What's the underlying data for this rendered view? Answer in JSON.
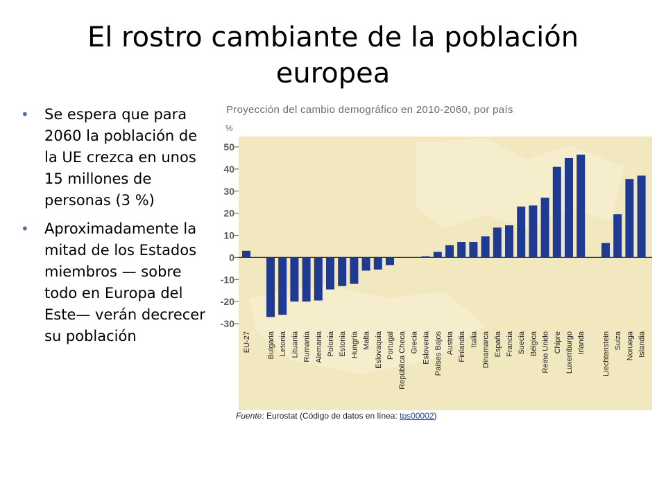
{
  "slide": {
    "title": "El rostro cambiante de la población europea",
    "bullets": [
      "Se espera que para 2060 la población de la UE crezca en unos 15 millones de personas (3 %)",
      "Aproximadamente la mitad de los Estados miembros — sobre todo en Europa del Este— verán decrecer su población"
    ]
  },
  "chart_data": {
    "type": "bar",
    "title": "Proyección del cambio demográfico en 2010-2060, por país",
    "ylabel": "%",
    "ylim": [
      -30,
      50
    ],
    "yticks": [
      50,
      40,
      30,
      20,
      10,
      0,
      -10,
      -20,
      -30
    ],
    "grid": false,
    "bar_color": "#1f3a93",
    "background_color": "#f2e8bf",
    "categories": [
      "EU-27",
      "Bulgaria",
      "Letonia",
      "Lituania",
      "Rumanía",
      "Alemania",
      "Polonia",
      "Estonia",
      "Hungría",
      "Malta",
      "Eslovaquia",
      "Portugal",
      "República Checa",
      "Grecia",
      "Eslovenia",
      "Países Bajos",
      "Austria",
      "Finlandia",
      "Italia",
      "Dinamarca",
      "España",
      "Francia",
      "Suecia",
      "Bélgica",
      "Reino Unido",
      "Chipre",
      "Luxemburgo",
      "Irlanda",
      "Liechtenstein",
      "Suiza",
      "Noruega",
      "Islandia"
    ],
    "values": [
      3,
      -27,
      -26,
      -20,
      -20,
      -19.5,
      -14.5,
      -13,
      -12,
      -6,
      -5.5,
      -3.5,
      0,
      0,
      0.5,
      2.5,
      5.5,
      7,
      7,
      9.5,
      13.5,
      14.5,
      23,
      23.5,
      27,
      41,
      45,
      46.5,
      6.5,
      19.5,
      35.5,
      37
    ],
    "source": {
      "prefix": "Fuente",
      "text": ": Eurostat (Código de datos en línea: ",
      "link": "tps00002",
      "suffix": ")"
    }
  }
}
